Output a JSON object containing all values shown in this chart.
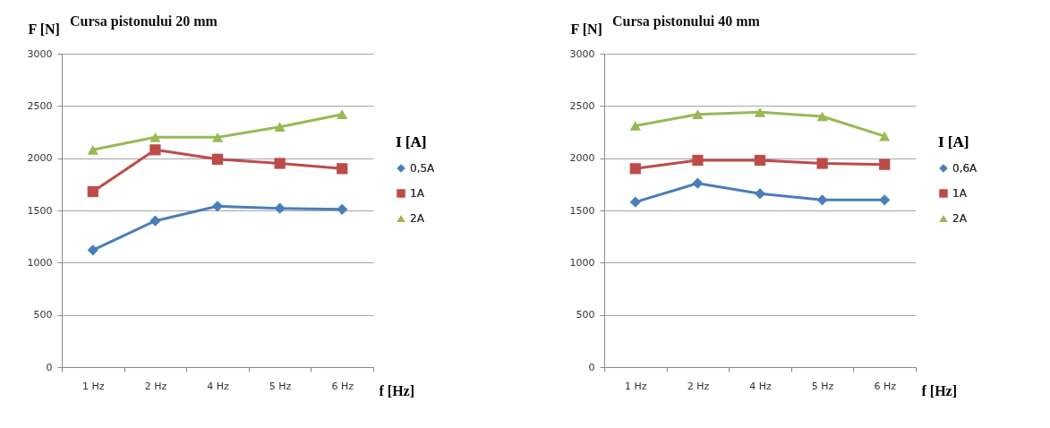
{
  "chart_data": [
    {
      "type": "line",
      "title": "Cursa pistonului  20 mm",
      "xlabel": "f [Hz]",
      "ylabel": "F [N]",
      "legend_title": "I [A]",
      "categories": [
        "1 Hz",
        "2 Hz",
        "4 Hz",
        "5 Hz",
        "6 Hz"
      ],
      "ylim": [
        0,
        3000
      ],
      "yticks": [
        0,
        500,
        1000,
        1500,
        2000,
        2500,
        3000
      ],
      "grid": "y",
      "legend": "right",
      "series": [
        {
          "name": "0,5A",
          "color": "#4a7ebb",
          "marker": "diamond",
          "values": [
            1120,
            1400,
            1540,
            1520,
            1510
          ]
        },
        {
          "name": "1A",
          "color": "#be4b48",
          "marker": "square",
          "values": [
            1680,
            2080,
            1990,
            1950,
            1900
          ]
        },
        {
          "name": "2A",
          "color": "#98b954",
          "marker": "triangle",
          "values": [
            2080,
            2200,
            2200,
            2300,
            2420
          ]
        }
      ]
    },
    {
      "type": "line",
      "title": "Cursa pistonului 40 mm",
      "xlabel": "f [Hz]",
      "ylabel": "F [N]",
      "legend_title": "I [A]",
      "categories": [
        "1 Hz",
        "2 Hz",
        "4 Hz",
        "5 Hz",
        "6 Hz"
      ],
      "ylim": [
        0,
        3000
      ],
      "yticks": [
        0,
        500,
        1000,
        1500,
        2000,
        2500,
        3000
      ],
      "grid": "y",
      "legend": "right",
      "series": [
        {
          "name": "0,6A",
          "color": "#4a7ebb",
          "marker": "diamond",
          "values": [
            1580,
            1760,
            1660,
            1600,
            1600
          ]
        },
        {
          "name": "1A",
          "color": "#be4b48",
          "marker": "square",
          "values": [
            1900,
            1980,
            1980,
            1950,
            1940
          ]
        },
        {
          "name": "2A",
          "color": "#98b954",
          "marker": "triangle",
          "values": [
            2310,
            2420,
            2440,
            2400,
            2210
          ]
        }
      ]
    }
  ]
}
